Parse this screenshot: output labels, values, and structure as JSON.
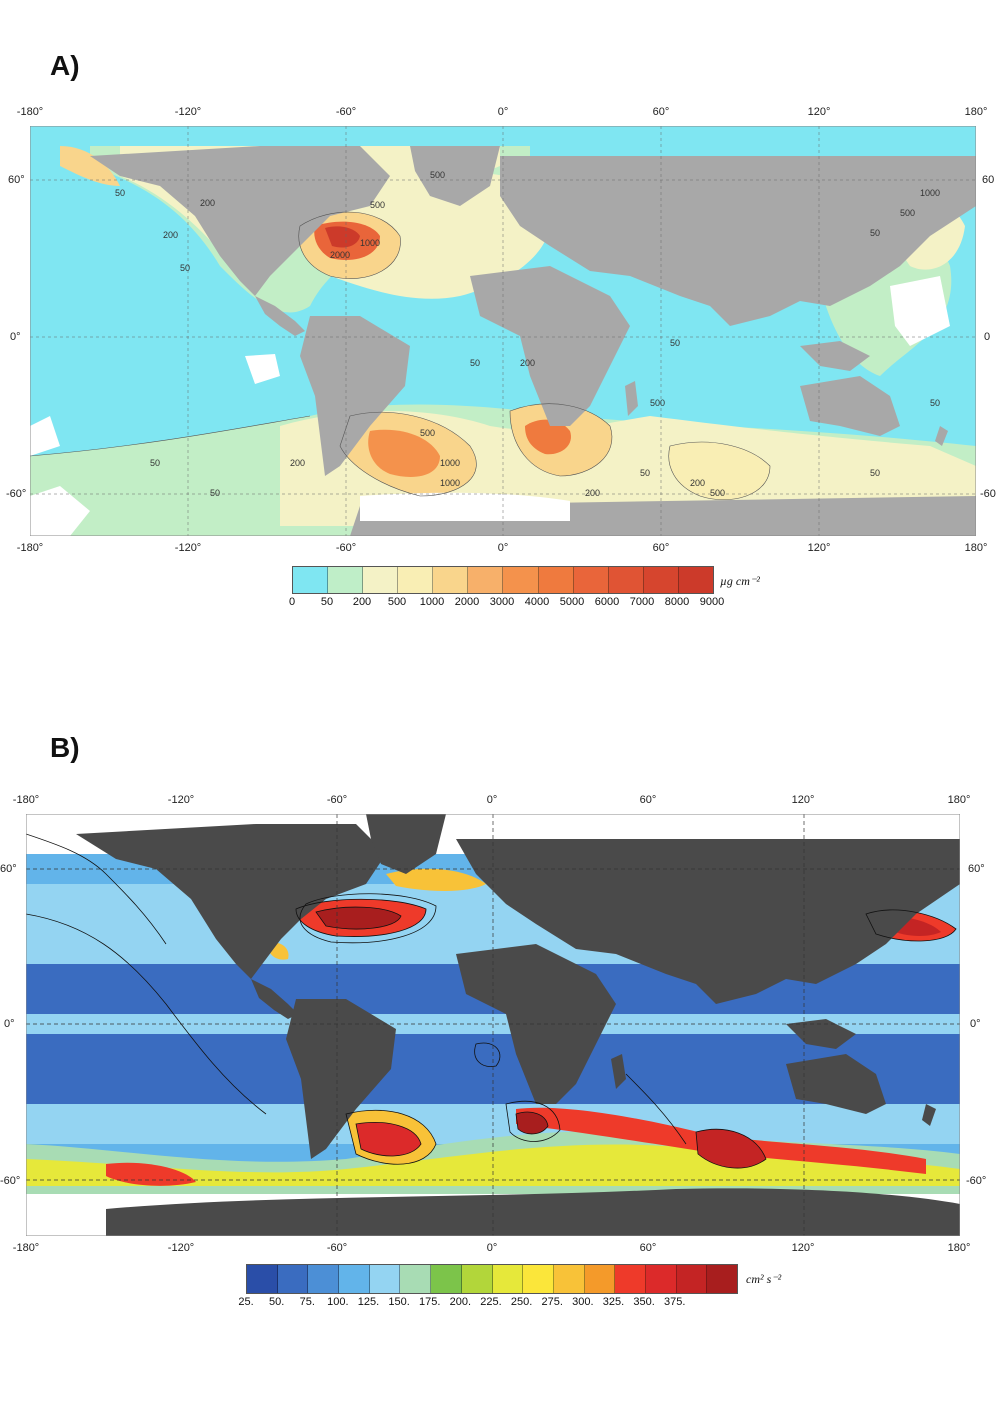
{
  "panel_a": {
    "label": "A)",
    "x_ticks": [
      "-180°",
      "-120°",
      "-60°",
      "0°",
      "60°",
      "120°",
      "180°"
    ],
    "y_ticks_left": [
      "60°",
      "0°",
      "-60°"
    ],
    "y_ticks_right": [
      "60",
      "0",
      "-60"
    ],
    "colorbar": {
      "unit": "µg cm⁻²",
      "labels": [
        "0",
        "50",
        "200",
        "500",
        "1000",
        "2000",
        "3000",
        "4000",
        "5000",
        "6000",
        "7000",
        "8000",
        "9000"
      ],
      "colors": [
        "#7fe6f2",
        "#bfeec8",
        "#f4f2c6",
        "#f9eeb4",
        "#f9d58c",
        "#f7b06a",
        "#f4924c",
        "#ef7a3e",
        "#e9653a",
        "#e05434",
        "#d6452e",
        "#cc3a2a"
      ]
    },
    "contour_labels": [
      "500",
      "200",
      "50",
      "1000",
      "2000",
      "200",
      "500",
      "50",
      "500",
      "1000",
      "50",
      "200",
      "50",
      "50",
      "1000",
      "500",
      "50",
      "200",
      "50",
      "500",
      "200",
      "50",
      "50",
      "200",
      "1000",
      "500",
      "50"
    ]
  },
  "panel_b": {
    "label": "B)",
    "x_ticks": [
      "-180°",
      "-120°",
      "-60°",
      "0°",
      "60°",
      "120°",
      "180°"
    ],
    "y_ticks_left": [
      "60°",
      "0°",
      "-60°"
    ],
    "y_ticks_right": [
      "60°",
      "0°",
      "-60°"
    ],
    "colorbar": {
      "unit": "cm² s⁻²",
      "labels": [
        "25.",
        "50.",
        "75.",
        "100.",
        "125.",
        "150.",
        "175.",
        "200.",
        "225.",
        "250.",
        "275.",
        "300.",
        "325.",
        "350.",
        "375."
      ],
      "colors": [
        "#2a4ea8",
        "#3a6cc0",
        "#4c8fd6",
        "#62b4ea",
        "#94d4f2",
        "#a8dcb4",
        "#7cc44a",
        "#b2d63a",
        "#e6e83a",
        "#fbe63a",
        "#f8c238",
        "#f49a2a",
        "#ee3a2a",
        "#dc2a2a",
        "#c42424",
        "#a81e1e"
      ]
    }
  },
  "colors": {
    "land_a": "#a8a8a8",
    "land_b": "#4a4a4a",
    "ocean_low_a": "#7fe6f2",
    "ice": "#ffffff"
  }
}
